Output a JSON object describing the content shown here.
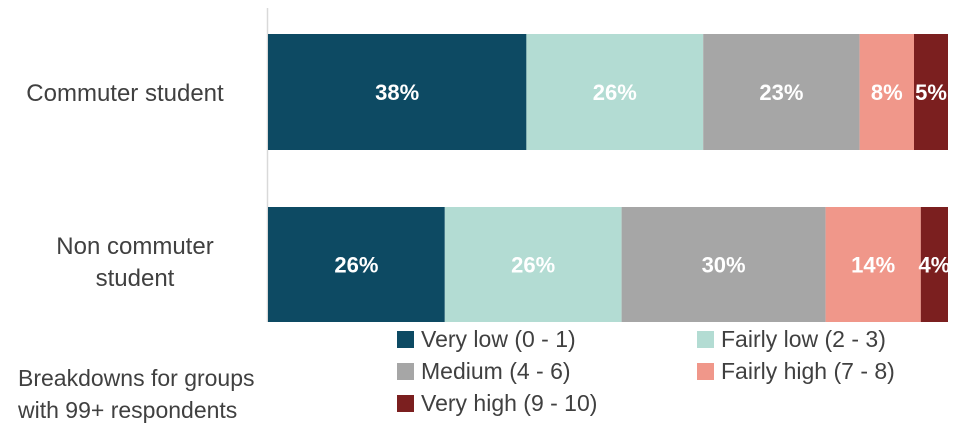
{
  "chart_data": {
    "type": "bar",
    "orientation": "horizontal",
    "stacked": true,
    "percent_stacked": true,
    "categories": [
      "Commuter student",
      "Non commuter student"
    ],
    "series": [
      {
        "name": "Very low (0 - 1)",
        "values": [
          38,
          26
        ],
        "color": "#0d4a63",
        "label_color": "#ffffff"
      },
      {
        "name": "Fairly low (2 - 3)",
        "values": [
          26,
          26
        ],
        "color": "#b3dcd3",
        "label_color": "#ffffff"
      },
      {
        "name": "Medium (4 - 6)",
        "values": [
          23,
          30
        ],
        "color": "#a6a6a6",
        "label_color": "#ffffff"
      },
      {
        "name": "Fairly high (7 - 8)",
        "values": [
          8,
          14
        ],
        "color": "#f0978a",
        "label_color": "#ffffff"
      },
      {
        "name": "Very high (9 - 10)",
        "values": [
          5,
          4
        ],
        "color": "#7b1f1f",
        "label_color": "#ffffff"
      }
    ],
    "xlim": [
      0,
      100
    ],
    "grid": false,
    "legend_position": "bottom-right"
  },
  "note": {
    "line1": "Breakdowns for groups",
    "line2": "with 99+ respondents"
  }
}
